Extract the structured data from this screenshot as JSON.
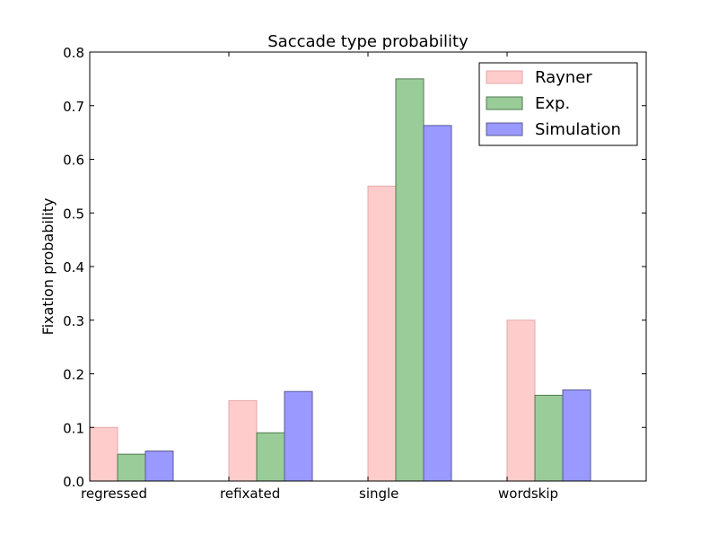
{
  "chart_data": {
    "type": "bar",
    "title": "Saccade type probability",
    "xlabel": "",
    "ylabel": "Fixation probability",
    "categories": [
      "regressed",
      "refixated",
      "single",
      "wordskip"
    ],
    "series": [
      {
        "name": "Rayner",
        "values": [
          0.1,
          0.15,
          0.55,
          0.3
        ],
        "fill": "#ffcccc",
        "stroke": "#e5a8a8"
      },
      {
        "name": "Exp.",
        "values": [
          0.05,
          0.09,
          0.75,
          0.16
        ],
        "fill": "#99cc99",
        "stroke": "#4f7a4f"
      },
      {
        "name": "Simulation",
        "values": [
          0.056,
          0.167,
          0.663,
          0.17
        ],
        "fill": "#9999ff",
        "stroke": "#5a5a99"
      }
    ],
    "ylim": [
      0,
      0.8
    ],
    "yticks": [
      0.0,
      0.1,
      0.2,
      0.3,
      0.4,
      0.5,
      0.6,
      0.7,
      0.8
    ],
    "ytick_labels": [
      "0.0",
      "0.1",
      "0.2",
      "0.3",
      "0.4",
      "0.5",
      "0.6",
      "0.7",
      "0.8"
    ],
    "grid": false,
    "legend_position": "top-right"
  }
}
